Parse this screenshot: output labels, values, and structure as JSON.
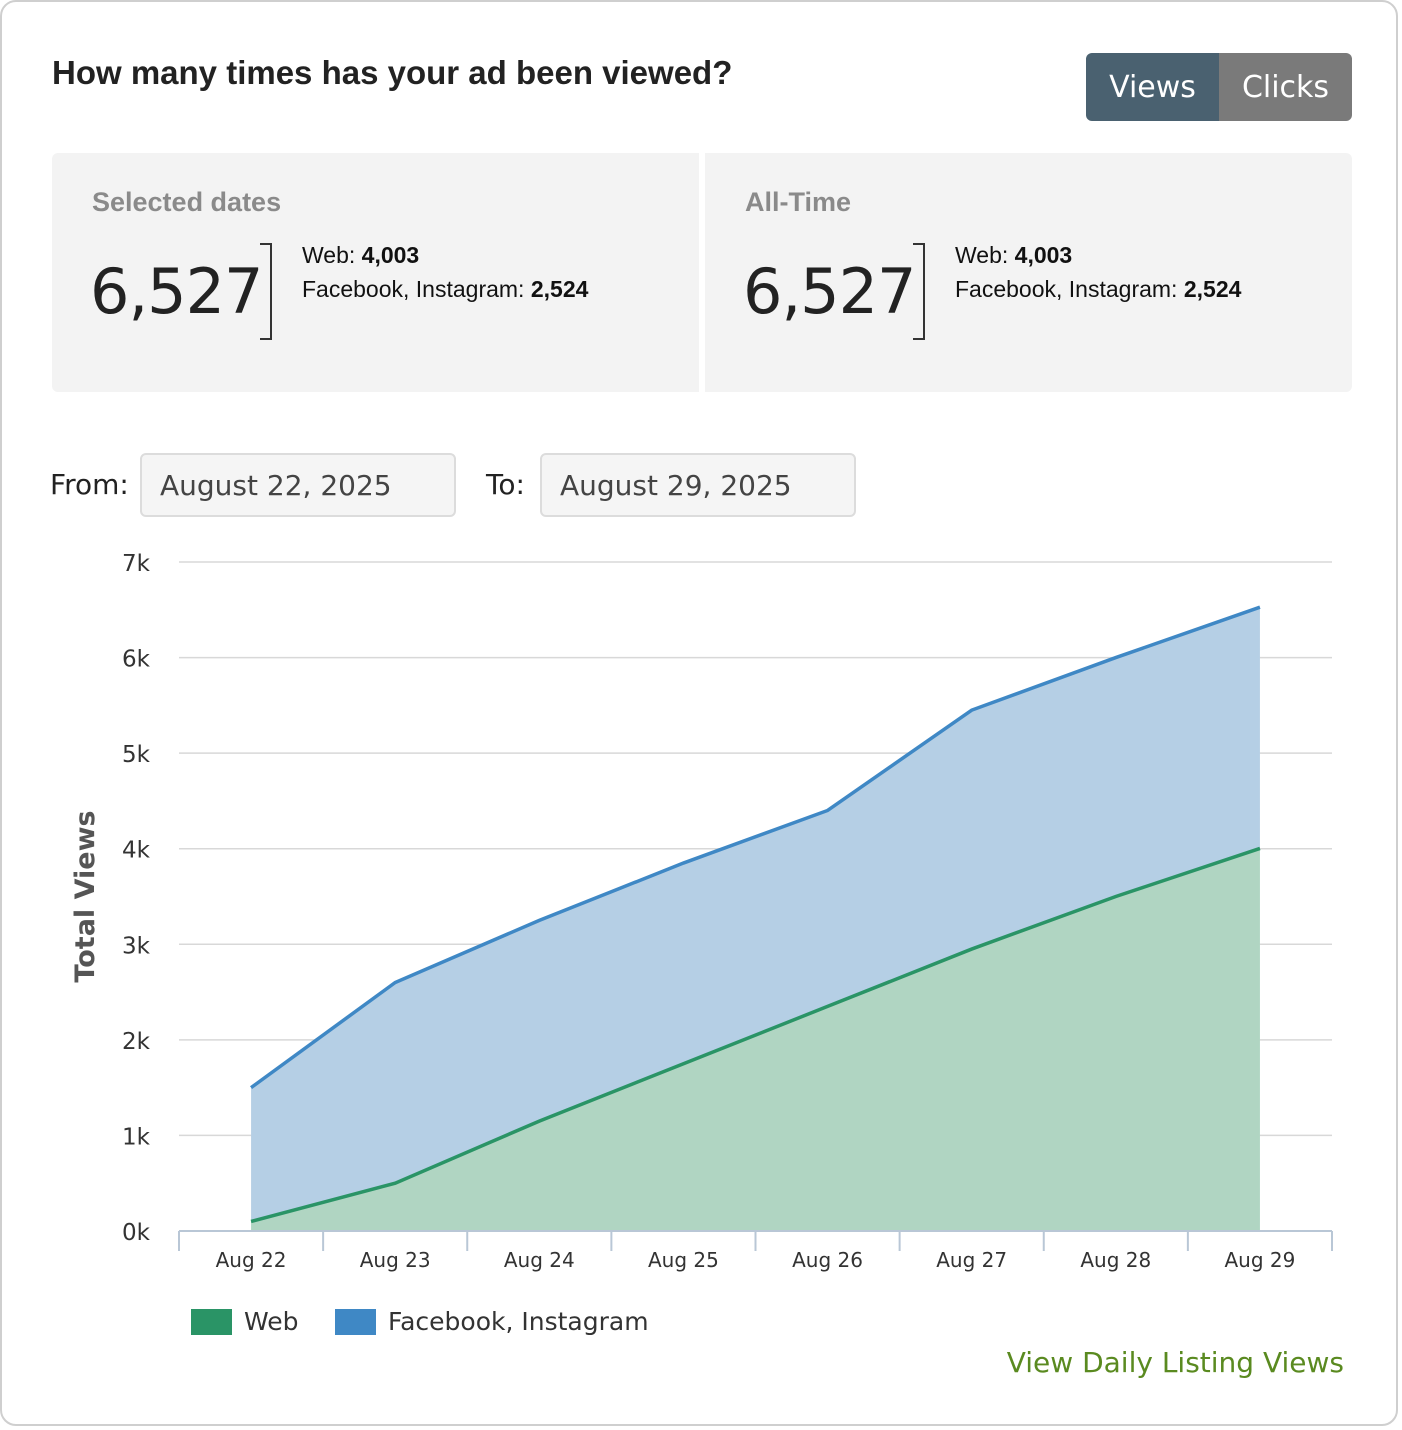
{
  "header": {
    "title": "How many times has your ad been viewed?"
  },
  "toggle": {
    "views_label": "Views",
    "clicks_label": "Clicks",
    "active": "Views"
  },
  "stats": {
    "selected": {
      "label": "Selected dates",
      "total": "6,527",
      "web_label": "Web:",
      "web_value": "4,003",
      "social_label": "Facebook, Instagram:",
      "social_value": "2,524"
    },
    "alltime": {
      "label": "All-Time",
      "total": "6,527",
      "web_label": "Web:",
      "web_value": "4,003",
      "social_label": "Facebook, Instagram:",
      "social_value": "2,524"
    }
  },
  "date_range": {
    "from_label": "From:",
    "from_value": "August 22, 2025",
    "to_label": "To:",
    "to_value": "August 29, 2025"
  },
  "chart_data": {
    "type": "area",
    "stacked": true,
    "ylabel": "Total Views",
    "xlabel": "",
    "ylim": [
      0,
      7000
    ],
    "yticks": [
      0,
      1000,
      2000,
      3000,
      4000,
      5000,
      6000,
      7000
    ],
    "ytick_labels": [
      "0k",
      "1k",
      "2k",
      "3k",
      "4k",
      "5k",
      "6k",
      "7k"
    ],
    "categories": [
      "Aug 22",
      "Aug 23",
      "Aug 24",
      "Aug 25",
      "Aug 26",
      "Aug 27",
      "Aug 28",
      "Aug 29"
    ],
    "series": [
      {
        "name": "Web",
        "color": "#2a9466",
        "fill": "#b0d5c2",
        "values": [
          100,
          500,
          1150,
          1750,
          2350,
          2950,
          3500,
          4003
        ]
      },
      {
        "name": "Facebook, Instagram",
        "color": "#3f88c5",
        "fill": "#b5cfe5",
        "values": [
          1400,
          2100,
          2100,
          2100,
          2050,
          2500,
          2500,
          2524
        ]
      }
    ],
    "grid": true,
    "legend_position": "bottom-left"
  },
  "footer": {
    "link_label": "View Daily Listing Views"
  }
}
